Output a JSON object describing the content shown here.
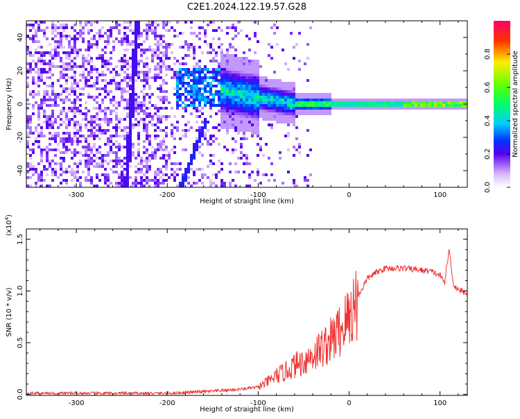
{
  "title": "C2E1.2024.122.19.57.G28",
  "chart_data": [
    {
      "type": "heatmap",
      "xlabel": "Height of straight line (km)",
      "ylabel": "Frequency (Hz)",
      "xlim": [
        -355,
        130
      ],
      "ylim": [
        -50,
        50
      ],
      "xticks": [
        -300,
        -200,
        -100,
        0,
        100
      ],
      "xtick_labels": [
        "-300",
        "-200",
        "-100",
        "0",
        "100"
      ],
      "yticks": [
        -40,
        -20,
        0,
        20,
        40
      ],
      "ytick_labels": [
        "-40",
        "-20",
        "0",
        "20",
        "40"
      ],
      "colorbar": {
        "label": "Normalized spectral amplitude",
        "range": [
          0,
          1
        ],
        "ticks": [
          0.0,
          0.2,
          0.4,
          0.6,
          0.8
        ],
        "tick_labels": [
          "0.0",
          "0.2",
          "0.4",
          "0.6",
          "0.8"
        ]
      },
      "grid": false
    },
    {
      "type": "line",
      "xlabel": "Height of straight line (km)",
      "ylabel": "SNR (10 * v/v)",
      "y_multiplier": "(x10",
      "y_multiplier_exp": "4",
      "y_multiplier_close": ")",
      "xlim": [
        -355,
        130
      ],
      "ylim": [
        -0.01,
        1.6
      ],
      "xticks": [
        -300,
        -200,
        -100,
        0,
        100
      ],
      "xtick_labels": [
        "-300",
        "-200",
        "-100",
        "0",
        "100"
      ],
      "yticks": [
        0.0,
        0.5,
        1.0,
        1.5
      ],
      "ytick_labels": [
        "0.0",
        "0.5",
        "1.0",
        "1.5"
      ],
      "series_color": "#ee3333",
      "x": [
        -355,
        -300,
        -250,
        -200,
        -175,
        -150,
        -120,
        -100,
        -90,
        -80,
        -70,
        -60,
        -50,
        -40,
        -30,
        -20,
        -10,
        0,
        10,
        20,
        30,
        40,
        50,
        60,
        70,
        80,
        90,
        100,
        105,
        110,
        115,
        120,
        125,
        130
      ],
      "values": [
        0.01,
        0.01,
        0.01,
        0.01,
        0.02,
        0.03,
        0.05,
        0.07,
        0.12,
        0.18,
        0.22,
        0.28,
        0.32,
        0.38,
        0.45,
        0.52,
        0.62,
        0.75,
        0.95,
        1.12,
        1.18,
        1.22,
        1.22,
        1.22,
        1.21,
        1.2,
        1.19,
        1.15,
        1.08,
        1.4,
        1.05,
        1.02,
        0.99,
        0.98
      ],
      "grid": false
    }
  ]
}
